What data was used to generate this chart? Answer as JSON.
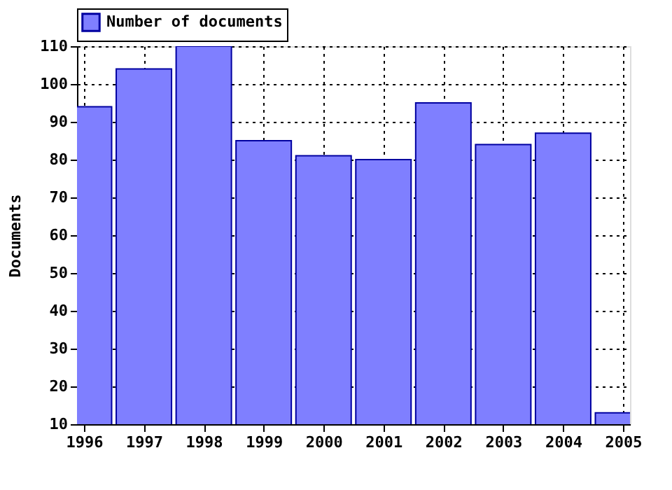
{
  "chart_data": {
    "type": "bar",
    "ylabel": "Documents",
    "x": [
      1996,
      1997,
      1998,
      1999,
      2000,
      2001,
      2002,
      2003,
      2004,
      2005
    ],
    "series": [
      {
        "name": "Number of documents",
        "color": "#7f7fff",
        "values": [
          94,
          104,
          110,
          85,
          81,
          80,
          95,
          84,
          87,
          13
        ]
      }
    ],
    "xlim": [
      1996,
      2005
    ],
    "xticks": [
      1996,
      1997,
      1998,
      1999,
      2000,
      2001,
      2002,
      2003,
      2004,
      2005
    ],
    "ylim": [
      10,
      110
    ],
    "yticks": [
      10,
      20,
      30,
      40,
      50,
      60,
      70,
      80,
      90,
      100,
      110
    ],
    "grid": true,
    "legend": "top left"
  }
}
